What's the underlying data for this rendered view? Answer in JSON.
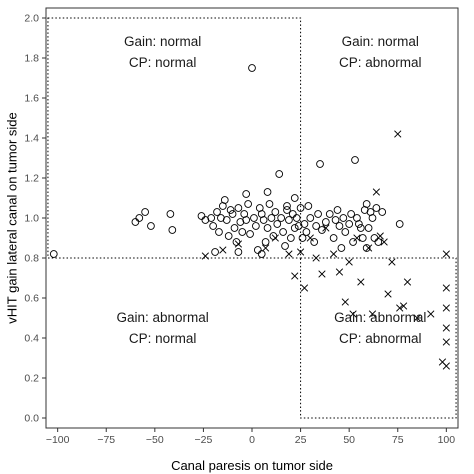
{
  "chart_data": {
    "type": "scatter",
    "title": "",
    "xlabel": "Canal paresis on tumor side",
    "ylabel": "vHIT gain lateral canal on tumor side",
    "xlim": [
      -106,
      106
    ],
    "ylim": [
      -0.05,
      2.05
    ],
    "xticks": [
      -100,
      -75,
      -50,
      -25,
      0,
      25,
      50,
      75,
      100
    ],
    "yticks": [
      0.0,
      0.2,
      0.4,
      0.6,
      0.8,
      1.0,
      1.2,
      1.4,
      1.6,
      1.8,
      2.0
    ],
    "xtick_labels": [
      "−100",
      "−75",
      "−50",
      "−25",
      "0",
      "25",
      "50",
      "75",
      "100"
    ],
    "ytick_labels": [
      "0.0",
      "0.2",
      "0.4",
      "0.6",
      "0.8",
      "1.0",
      "1.2",
      "1.4",
      "1.6",
      "1.8",
      "2.0"
    ],
    "grid": false,
    "marker_color": "#000000",
    "regions": [
      {
        "x0": -105,
        "x1": 25,
        "y0": 0.8,
        "y1": 2.0
      },
      {
        "x0": 25,
        "x1": 105,
        "y0": 0.0,
        "y1": 0.8
      }
    ],
    "annotations": [
      {
        "lines": [
          "Gain: normal",
          "CP: normal"
        ],
        "x": -46,
        "y": 1.86,
        "anchor": "middle"
      },
      {
        "lines": [
          "Gain: normal",
          "CP: abnormal"
        ],
        "x": 66,
        "y": 1.86,
        "anchor": "middle"
      },
      {
        "lines": [
          "Gain: abnormal",
          "CP: normal"
        ],
        "x": -46,
        "y": 0.48,
        "anchor": "middle"
      },
      {
        "lines": [
          "Gain: abnormal",
          "CP: abnormal"
        ],
        "x": 66,
        "y": 0.48,
        "anchor": "middle"
      }
    ],
    "series": [
      {
        "marker": "circle",
        "points": [
          [
            -102,
            0.82
          ],
          [
            -42,
            1.02
          ],
          [
            -41,
            0.94
          ],
          [
            -21,
            1.0
          ],
          [
            -20,
            0.96
          ],
          [
            -18,
            1.03
          ],
          [
            -17,
            0.93
          ],
          [
            -16,
            1.0
          ],
          [
            -15,
            1.06
          ],
          [
            -14,
            1.09
          ],
          [
            -13,
            0.99
          ],
          [
            -12,
            0.91
          ],
          [
            -11,
            1.04
          ],
          [
            -10,
            1.02
          ],
          [
            -9,
            0.95
          ],
          [
            -8,
            0.88
          ],
          [
            -7,
            1.05
          ],
          [
            -6,
            0.98
          ],
          [
            -5,
            0.93
          ],
          [
            -4,
            1.02
          ],
          [
            -3,
            0.99
          ],
          [
            -2,
            1.07
          ],
          [
            -1,
            0.92
          ],
          [
            0,
            1.75
          ],
          [
            1,
            1.0
          ],
          [
            2,
            0.96
          ],
          [
            3,
            0.84
          ],
          [
            4,
            1.05
          ],
          [
            5,
            1.02
          ],
          [
            6,
            0.99
          ],
          [
            7,
            0.88
          ],
          [
            8,
            0.95
          ],
          [
            9,
            1.07
          ],
          [
            10,
            1.0
          ],
          [
            11,
            0.91
          ],
          [
            12,
            1.03
          ],
          [
            13,
            0.97
          ],
          [
            14,
            1.22
          ],
          [
            15,
            1.0
          ],
          [
            16,
            0.93
          ],
          [
            17,
            0.86
          ],
          [
            18,
            1.04
          ],
          [
            19,
            0.99
          ],
          [
            20,
            0.9
          ],
          [
            21,
            1.02
          ],
          [
            22,
            0.95
          ],
          [
            23,
            1.0
          ],
          [
            24,
            0.96
          ],
          [
            25,
            1.05
          ],
          [
            26,
            0.9
          ],
          [
            27,
            0.97
          ],
          [
            28,
            0.93
          ],
          [
            30,
            1.0
          ],
          [
            32,
            0.88
          ],
          [
            34,
            1.02
          ],
          [
            35,
            1.27
          ],
          [
            36,
            0.94
          ],
          [
            38,
            0.98
          ],
          [
            40,
            1.02
          ],
          [
            42,
            0.9
          ],
          [
            44,
            1.04
          ],
          [
            45,
            0.96
          ],
          [
            46,
            0.85
          ],
          [
            47,
            1.0
          ],
          [
            48,
            0.93
          ],
          [
            50,
            0.97
          ],
          [
            51,
            1.02
          ],
          [
            52,
            0.88
          ],
          [
            53,
            1.29
          ],
          [
            54,
            1.0
          ],
          [
            56,
            0.95
          ],
          [
            57,
            0.9
          ],
          [
            58,
            1.04
          ],
          [
            59,
            0.85
          ],
          [
            60,
            0.95
          ],
          [
            62,
            1.0
          ],
          [
            63,
            0.9
          ],
          [
            64,
            1.05
          ],
          [
            65,
            0.88
          ],
          [
            67,
            1.03
          ],
          [
            -58,
            1.0
          ],
          [
            -55,
            1.03
          ],
          [
            -60,
            0.98
          ],
          [
            -52,
            0.96
          ],
          [
            76,
            0.97
          ],
          [
            61,
            1.03
          ],
          [
            59,
            1.07
          ],
          [
            -24,
            0.99
          ],
          [
            -19,
            0.83
          ],
          [
            -26,
            1.01
          ],
          [
            -7,
            0.83
          ],
          [
            5,
            0.82
          ],
          [
            22,
            1.1
          ],
          [
            29,
            1.06
          ],
          [
            33,
            0.96
          ],
          [
            43,
            0.99
          ],
          [
            55,
            0.97
          ],
          [
            -3,
            1.12
          ],
          [
            8,
            1.13
          ],
          [
            18,
            1.06
          ]
        ]
      },
      {
        "marker": "cross",
        "points": [
          [
            -24,
            0.81
          ],
          [
            -15,
            0.84
          ],
          [
            -7,
            0.87
          ],
          [
            7,
            0.85
          ],
          [
            12,
            0.9
          ],
          [
            19,
            0.82
          ],
          [
            22,
            0.71
          ],
          [
            25,
            0.83
          ],
          [
            27,
            0.65
          ],
          [
            30,
            0.9
          ],
          [
            33,
            0.8
          ],
          [
            36,
            0.72
          ],
          [
            38,
            0.95
          ],
          [
            42,
            0.82
          ],
          [
            45,
            0.73
          ],
          [
            48,
            0.58
          ],
          [
            50,
            0.78
          ],
          [
            52,
            0.52
          ],
          [
            54,
            0.9
          ],
          [
            56,
            0.68
          ],
          [
            60,
            0.85
          ],
          [
            62,
            0.52
          ],
          [
            64,
            1.13
          ],
          [
            66,
            0.91
          ],
          [
            68,
            0.88
          ],
          [
            70,
            0.62
          ],
          [
            72,
            0.78
          ],
          [
            75,
            1.42
          ],
          [
            78,
            0.56
          ],
          [
            80,
            0.68
          ],
          [
            85,
            0.5
          ],
          [
            92,
            0.52
          ],
          [
            98,
            0.28
          ],
          [
            100,
            0.82
          ],
          [
            100,
            0.65
          ],
          [
            100,
            0.55
          ],
          [
            100,
            0.45
          ],
          [
            100,
            0.38
          ],
          [
            100,
            0.26
          ],
          [
            76,
            0.55
          ]
        ]
      }
    ]
  }
}
